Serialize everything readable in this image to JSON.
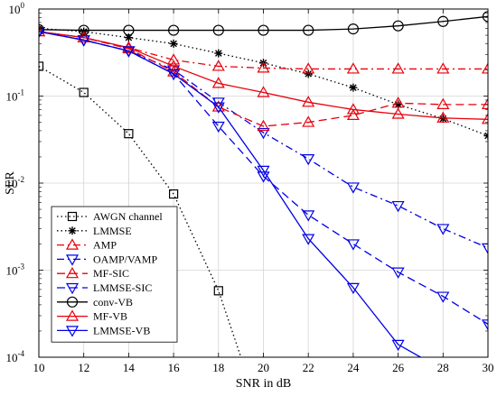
{
  "chart_data": {
    "type": "line",
    "xlabel": "SNR in dB",
    "ylabel": "SER",
    "xlim": [
      10,
      30
    ],
    "ylim": [
      0.0001,
      1
    ],
    "yscale": "log",
    "grid": true,
    "legend_position": "bottom-left",
    "x_ticks": [
      "10",
      "12",
      "14",
      "16",
      "18",
      "20",
      "22",
      "24",
      "26",
      "28",
      "30"
    ],
    "y_ticks": [
      {
        "value": 1,
        "mantissa": "10",
        "exponent": "0"
      },
      {
        "value": 0.1,
        "mantissa": "10",
        "exponent": "-1"
      },
      {
        "value": 0.01,
        "mantissa": "10",
        "exponent": "-2"
      },
      {
        "value": 0.001,
        "mantissa": "10",
        "exponent": "-3"
      },
      {
        "value": 0.0001,
        "mantissa": "10",
        "exponent": "-4"
      }
    ],
    "series": [
      {
        "name": "AWGN channel",
        "color": "#000000",
        "dash": "1.5,3",
        "marker": "square",
        "x": [
          10,
          12,
          14,
          16,
          18,
          19
        ],
        "y": [
          0.22,
          0.11,
          0.037,
          0.0075,
          0.00058,
          0.0001
        ],
        "marker_count": 5
      },
      {
        "name": "LMMSE",
        "color": "#000000",
        "dash": "1.5,3",
        "marker": "star",
        "x": [
          10,
          12,
          14,
          16,
          18,
          20,
          22,
          24,
          26,
          28,
          30
        ],
        "y": [
          0.6,
          0.55,
          0.47,
          0.4,
          0.31,
          0.24,
          0.18,
          0.125,
          0.08,
          0.055,
          0.035
        ]
      },
      {
        "name": "AMP",
        "color": "#e8000b",
        "dash": "8,4,2,4",
        "marker": "triangle-up",
        "x": [
          10,
          12,
          14,
          16,
          18,
          20,
          22,
          24,
          26,
          28,
          30
        ],
        "y": [
          0.55,
          0.47,
          0.36,
          0.26,
          0.22,
          0.21,
          0.205,
          0.205,
          0.205,
          0.205,
          0.205
        ]
      },
      {
        "name": "OAMP/VAMP",
        "color": "#0000e6",
        "dash": "8,4,2,4",
        "marker": "triangle-down",
        "x": [
          10,
          12,
          14,
          16,
          18,
          20,
          22,
          24,
          26,
          28,
          30
        ],
        "y": [
          0.55,
          0.44,
          0.33,
          0.2,
          0.085,
          0.038,
          0.019,
          0.009,
          0.0055,
          0.003,
          0.0018
        ]
      },
      {
        "name": "MF-SIC",
        "color": "#e8000b",
        "dash": "9,5",
        "marker": "triangle-up",
        "x": [
          10,
          12,
          14,
          16,
          18,
          20,
          22,
          24,
          26,
          28,
          30
        ],
        "y": [
          0.55,
          0.47,
          0.35,
          0.19,
          0.075,
          0.045,
          0.05,
          0.06,
          0.083,
          0.08,
          0.08
        ]
      },
      {
        "name": "LMMSE-SIC",
        "color": "#0000e6",
        "dash": "9,5",
        "marker": "triangle-down",
        "x": [
          10,
          12,
          14,
          16,
          18,
          20,
          22,
          24,
          26,
          28,
          30
        ],
        "y": [
          0.55,
          0.44,
          0.33,
          0.18,
          0.045,
          0.012,
          0.0043,
          0.002,
          0.00095,
          0.0005,
          0.00024
        ]
      },
      {
        "name": "conv-VB",
        "color": "#000000",
        "dash": "",
        "marker": "circle",
        "x": [
          10,
          12,
          14,
          16,
          18,
          20,
          22,
          24,
          26,
          28,
          30
        ],
        "y": [
          0.58,
          0.57,
          0.57,
          0.57,
          0.57,
          0.57,
          0.57,
          0.59,
          0.64,
          0.72,
          0.82
        ]
      },
      {
        "name": "MF-VB",
        "color": "#e8000b",
        "dash": "",
        "marker": "triangle-up",
        "x": [
          10,
          12,
          14,
          16,
          18,
          20,
          22,
          24,
          26,
          28,
          30
        ],
        "y": [
          0.55,
          0.47,
          0.36,
          0.22,
          0.14,
          0.11,
          0.085,
          0.07,
          0.062,
          0.056,
          0.054
        ]
      },
      {
        "name": "LMMSE-VB",
        "color": "#0000e6",
        "dash": "",
        "marker": "triangle-down",
        "x": [
          10,
          12,
          14,
          16,
          18,
          20,
          22,
          24,
          26,
          27
        ],
        "y": [
          0.55,
          0.44,
          0.33,
          0.18,
          0.075,
          0.014,
          0.0023,
          0.00063,
          0.00014,
          0.0001
        ],
        "marker_count": 9
      }
    ]
  }
}
